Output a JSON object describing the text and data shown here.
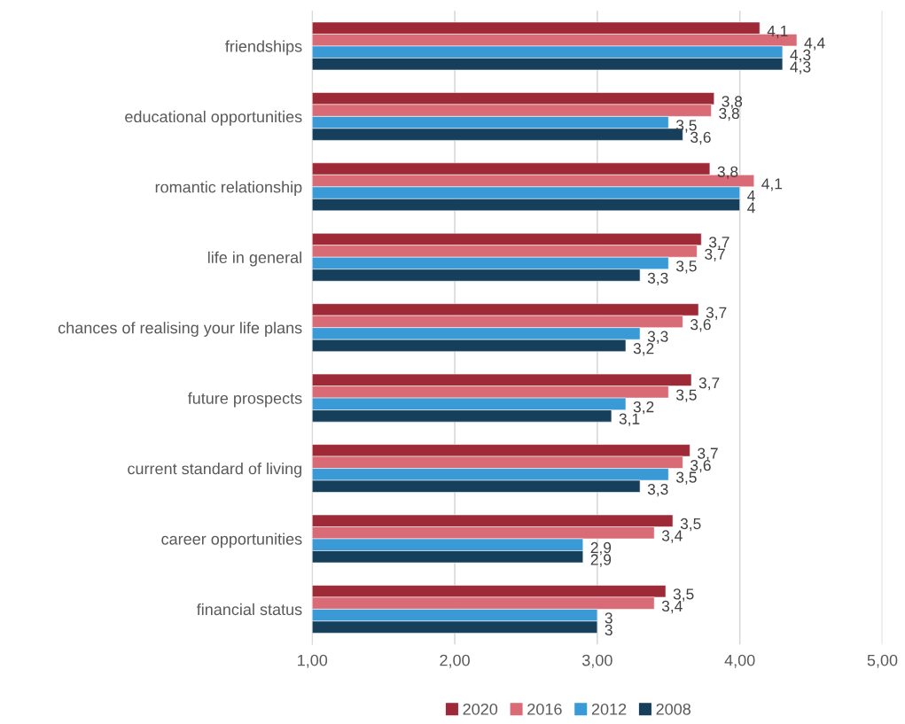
{
  "chart_data": {
    "type": "bar",
    "orientation": "horizontal",
    "categories": [
      "friendships",
      "educational opportunities",
      "romantic relationship",
      "life in general",
      "chances of realising your life plans",
      "future prospects",
      "current standard of living",
      "career opportunities",
      "financial status"
    ],
    "series": [
      {
        "name": "2020",
        "color": "#9e2a38",
        "values": [
          4.14,
          3.82,
          3.79,
          3.73,
          3.71,
          3.66,
          3.65,
          3.53,
          3.48
        ],
        "value_labels": [
          "4,1",
          "3,8",
          "3,8",
          "3,7",
          "3,7",
          "3,7",
          "3,7",
          "3,5",
          "3,5"
        ]
      },
      {
        "name": "2016",
        "color": "#d96b76",
        "values": [
          4.4,
          3.8,
          4.1,
          3.7,
          3.6,
          3.5,
          3.6,
          3.4,
          3.4
        ],
        "value_labels": [
          "4,4",
          "3,8",
          "4,1",
          "3,7",
          "3,6",
          "3,5",
          "3,6",
          "3,4",
          "3,4"
        ]
      },
      {
        "name": "2012",
        "color": "#3a9ad6",
        "values": [
          4.3,
          3.5,
          4.0,
          3.5,
          3.3,
          3.2,
          3.5,
          2.9,
          3.0
        ],
        "value_labels": [
          "4,3",
          "3,5",
          "4",
          "3,5",
          "3,3",
          "3,2",
          "3,5",
          "2,9",
          "3"
        ]
      },
      {
        "name": "2008",
        "color": "#163f5c",
        "values": [
          4.3,
          3.6,
          4.0,
          3.3,
          3.2,
          3.1,
          3.3,
          2.9,
          3.0
        ],
        "value_labels": [
          "4,3",
          "3,6",
          "4",
          "3,3",
          "3,2",
          "3,1",
          "3,3",
          "2,9",
          "3"
        ]
      }
    ],
    "xlim": [
      1,
      5
    ],
    "xticks": [
      {
        "value": 1,
        "label": "1,00"
      },
      {
        "value": 2,
        "label": "2,00"
      },
      {
        "value": 3,
        "label": "3,00"
      },
      {
        "value": 4,
        "label": "4,00"
      },
      {
        "value": 5,
        "label": "5,00"
      }
    ],
    "grid": "x",
    "legend": "bottom"
  }
}
